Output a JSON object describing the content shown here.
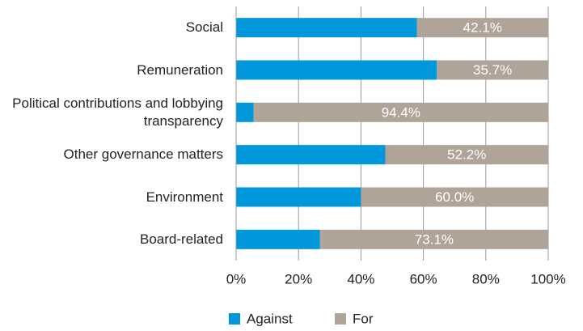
{
  "chart_data": {
    "type": "stacked-barh",
    "categories": [
      "Social",
      "Remuneration",
      "Political contributions and lobbying transparency",
      "Other governance matters",
      "Environment",
      "Board-related"
    ],
    "series": [
      {
        "name": "Against",
        "color": "#0098db",
        "values": [
          57.9,
          64.3,
          5.6,
          47.8,
          40.0,
          26.9
        ]
      },
      {
        "name": "For",
        "color": "#b0a398",
        "values": [
          42.1,
          35.7,
          94.4,
          52.2,
          60.0,
          73.1
        ],
        "value_labels": [
          "42.1%",
          "35.7%",
          "94.4%",
          "52.2%",
          "60.0%",
          "73.1%"
        ]
      }
    ],
    "xlim": [
      0,
      100
    ],
    "xticks": [
      {
        "value": 0,
        "label": "0%"
      },
      {
        "value": 20,
        "label": "20%"
      },
      {
        "value": 40,
        "label": "40%"
      },
      {
        "value": 60,
        "label": "60%"
      },
      {
        "value": 80,
        "label": "80%"
      },
      {
        "value": 100,
        "label": "100%"
      }
    ],
    "grid": true
  }
}
